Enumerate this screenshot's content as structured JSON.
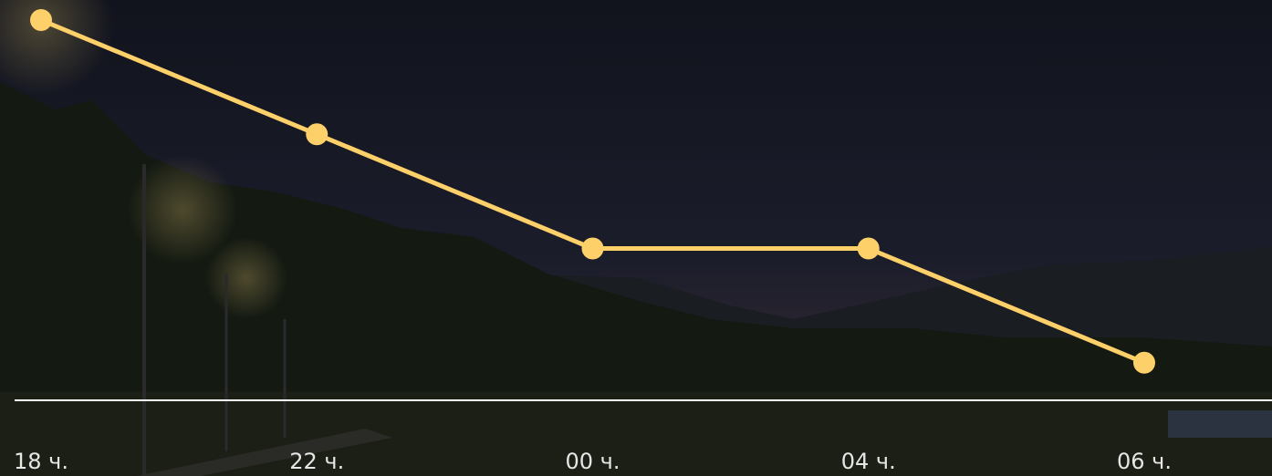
{
  "chart_data": {
    "type": "line",
    "categories": [
      "18 ч.",
      "22 ч.",
      "00 ч.",
      "04 ч.",
      "06 ч."
    ],
    "values": [
      100,
      75,
      50,
      50,
      25
    ],
    "color": "#fdd06a",
    "ylim": [
      0,
      100
    ]
  }
}
